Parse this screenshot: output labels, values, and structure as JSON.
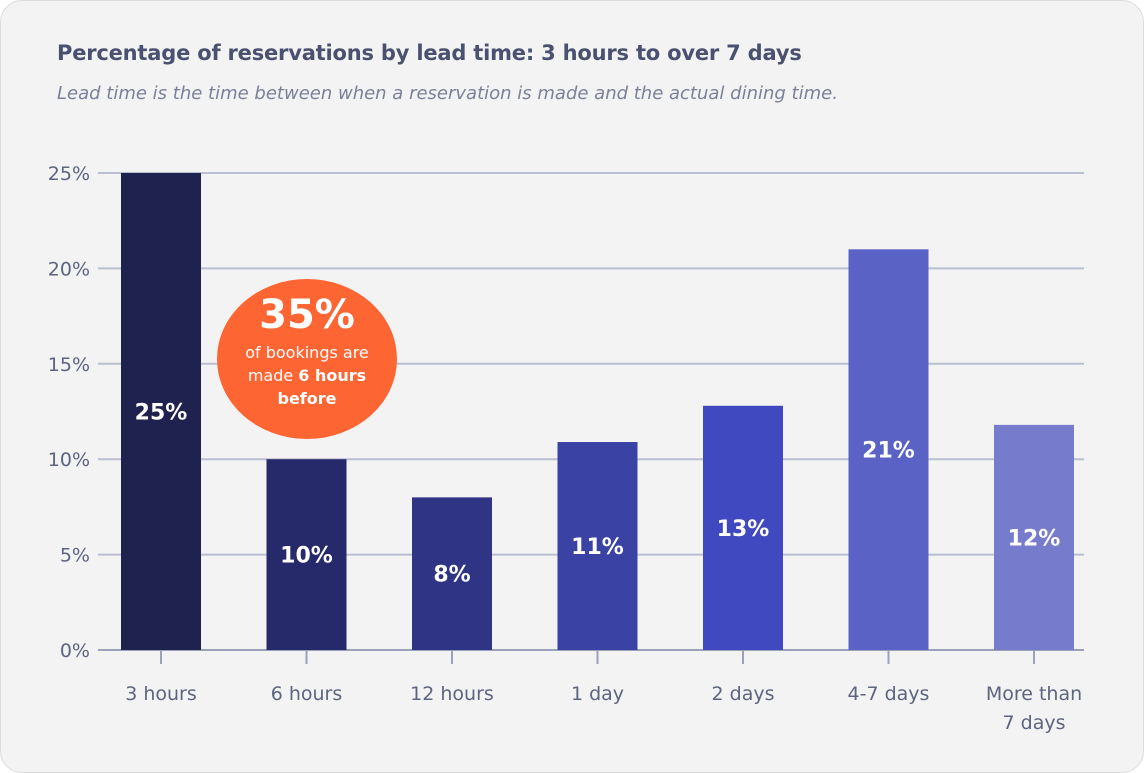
{
  "chart_data": {
    "type": "bar",
    "title": "Percentage of reservations by lead time: 3 hours to over 7 days",
    "subtitle": "Lead time is the time between when a reservation is made and the actual dining time.",
    "categories": [
      [
        "3 hours"
      ],
      [
        "6 hours"
      ],
      [
        "12 hours"
      ],
      [
        "1 day"
      ],
      [
        "2 days"
      ],
      [
        "4-7 days"
      ],
      [
        "More than",
        "7 days"
      ]
    ],
    "values": [
      25,
      10,
      8,
      10.9,
      12.8,
      21,
      11.8
    ],
    "data_labels": [
      "25%",
      "10%",
      "8%",
      "11%",
      "13%",
      "21%",
      "12%"
    ],
    "colors": [
      "#1f214e",
      "#262a6b",
      "#2f3485",
      "#3a42a4",
      "#4149c0",
      "#5a62c6",
      "#777bcc"
    ],
    "yticks": [
      0,
      5,
      10,
      15,
      20,
      25
    ],
    "ytick_labels": [
      "0%",
      "5%",
      "10%",
      "15%",
      "20%",
      "25%"
    ],
    "ylim": [
      0,
      25
    ],
    "xlabel": "",
    "ylabel": "",
    "grid": true
  },
  "callout": {
    "value": "35%",
    "text_before": "of bookings are made",
    "text_bold": "6 hours before"
  },
  "accent_color": "#fd6532"
}
